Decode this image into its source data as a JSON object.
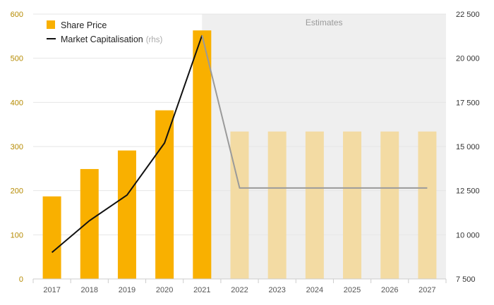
{
  "chart_data": {
    "type": "bar",
    "categories": [
      "2017",
      "2018",
      "2019",
      "2020",
      "2021",
      "2022",
      "2023",
      "2024",
      "2025",
      "2026",
      "2027"
    ],
    "series": [
      {
        "name": "Share Price",
        "type": "bar",
        "axis": "left",
        "values": [
          187,
          249,
          291,
          382,
          563,
          334,
          334,
          334,
          334,
          334,
          334
        ]
      },
      {
        "name": "Market Capitalisation",
        "name_suffix": "(rhs)",
        "type": "line",
        "axis": "right",
        "values": [
          9000,
          10800,
          12250,
          15200,
          21300,
          12650,
          12650,
          12650,
          12650,
          12650,
          12650
        ]
      }
    ],
    "estimate_start_index": 5,
    "estimates_label": "Estimates",
    "y_left": {
      "min": 0,
      "max": 600,
      "ticks": [
        0,
        100,
        200,
        300,
        400,
        500,
        600
      ]
    },
    "y_right": {
      "min": 7500,
      "max": 22500,
      "ticks": [
        7500,
        10000,
        12500,
        15000,
        17500,
        20000,
        22500
      ],
      "tick_labels": [
        "7 500",
        "10 000",
        "12 500",
        "15 000",
        "17 500",
        "20 000",
        "22 500"
      ]
    },
    "legend_position": "top-left",
    "grid": true
  },
  "colors": {
    "bar": "#f9b000",
    "bar_estimate": "#f3dba3",
    "line": "#111111",
    "line_estimate": "#9a9a9a",
    "estimate_bg": "#efefef",
    "grid": "#e6e6e6",
    "axis": "#cccccc",
    "left_tick": "#b58a00"
  }
}
